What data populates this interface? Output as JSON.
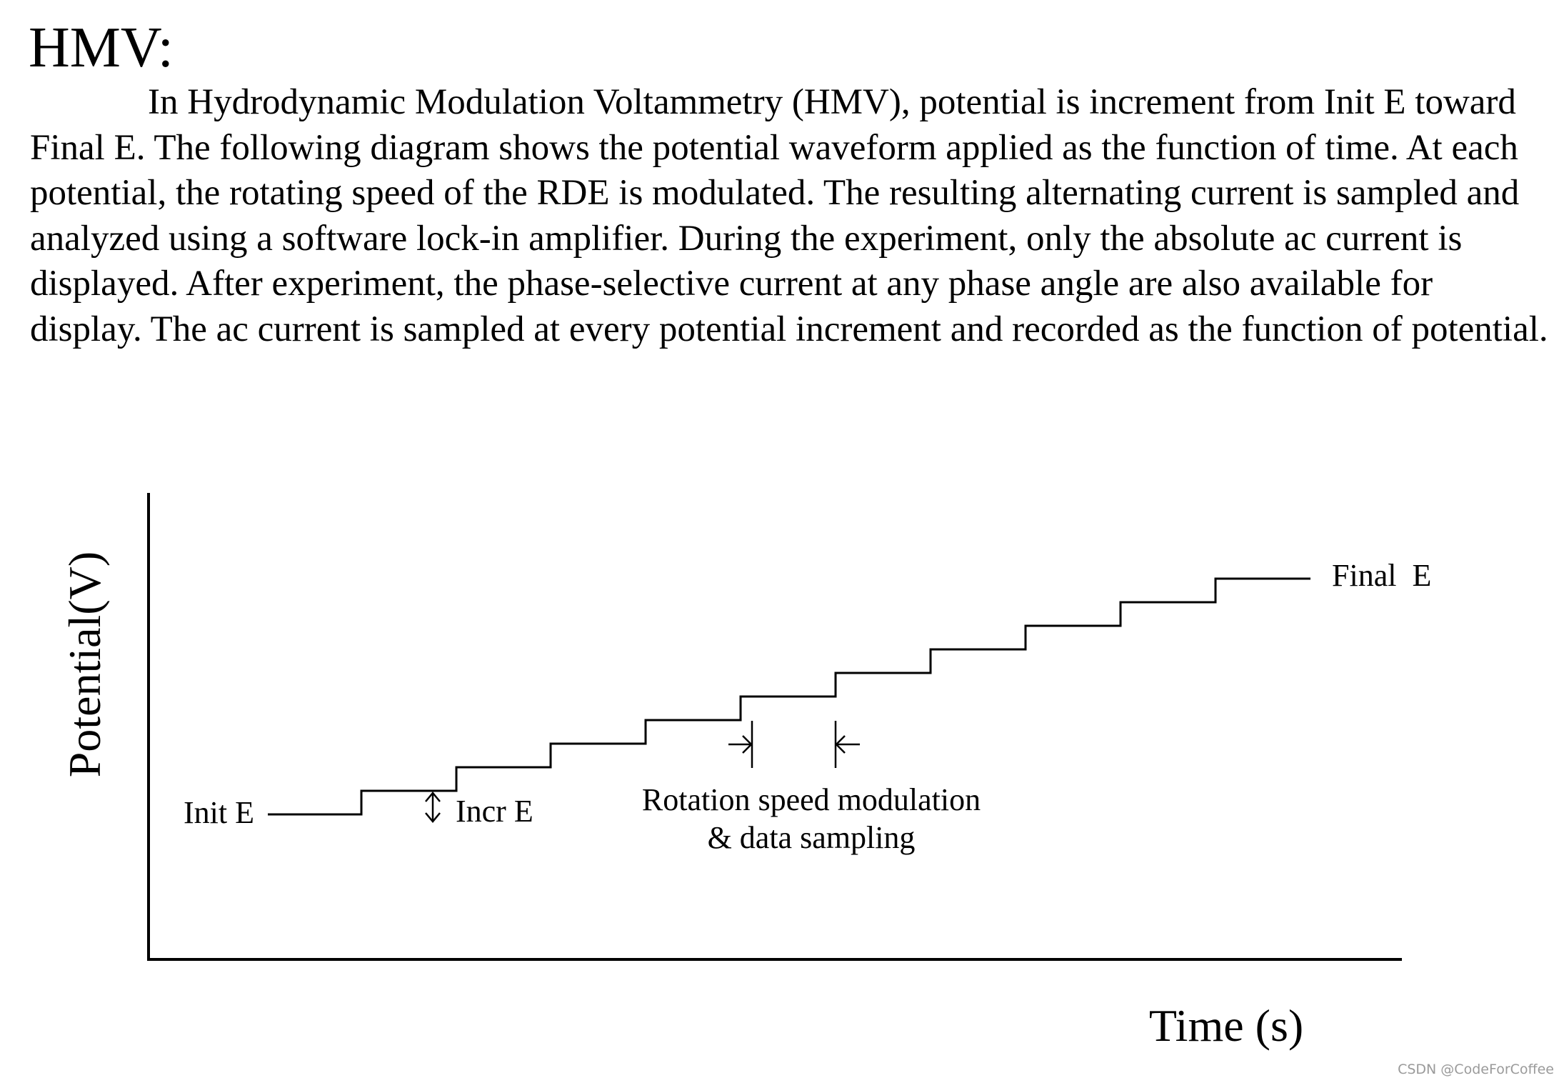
{
  "heading": "HMV:",
  "paragraph": "In Hydrodynamic Modulation Voltammetry (HMV), potential is increment from Init E toward Final E. The following diagram shows the potential waveform applied as the function of time.  At each potential, the rotating speed of the RDE is modulated.  The resulting alternating current is sampled and analyzed using a software lock-in amplifier. During the experiment, only the absolute ac current is displayed. After experiment, the phase-selective current at any phase angle are also available for display. The ac current is sampled at every potential increment and recorded as the function of potential.",
  "diagram": {
    "y_axis_label": "Potential(V)",
    "x_axis_label": "Time (s)",
    "init_label": "Init E",
    "incr_label": "Incr E",
    "final_label": "Final  E",
    "annotation_line1": "Rotation speed modulation",
    "annotation_line2": "& data sampling",
    "step_count": 10
  },
  "watermark": "CSDN @CodeForCoffee"
}
